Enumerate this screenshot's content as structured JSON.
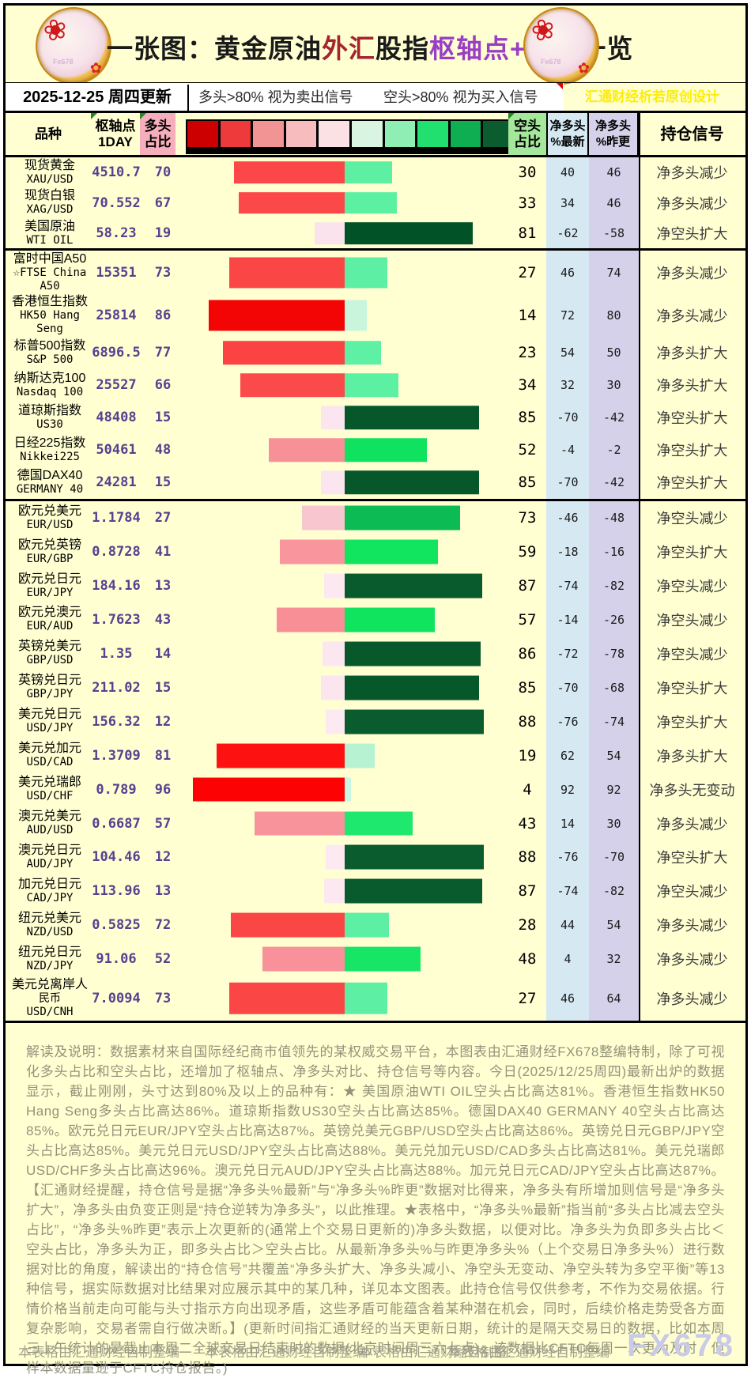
{
  "title_segments": [
    {
      "text": "一张图：黄金原油",
      "color": "#1a1a1a"
    },
    {
      "text": "外汇",
      "color": "#a42430"
    },
    {
      "text": "股指",
      "color": "#1a1a1a"
    },
    {
      "text": "枢轴点+多空",
      "color": "#9a3fc4"
    },
    {
      "text": "一览",
      "color": "#1a1a1a"
    }
  ],
  "logo": {
    "watermark": "Fx678",
    "flower_icon": "❀",
    "small_flower_icon": "✿"
  },
  "update_bar": {
    "date_label": "2025-12-25 周四更新",
    "long_note": "多头>80% 视为卖出信号",
    "short_note": "空头>80% 视为买入信号",
    "design_credit": "汇通财经析若原创设计"
  },
  "table": {
    "headers": {
      "variety": "品种",
      "pivot": [
        "枢轴点",
        "1DAY"
      ],
      "long": [
        "多头",
        "占比"
      ],
      "short": [
        "空头",
        "占比"
      ],
      "net_latest": [
        "净多头",
        "%最新"
      ],
      "net_prev": [
        "净多头",
        "%昨更"
      ],
      "signal": "持仓信号"
    }
  },
  "color_scale": [
    "#cc0000",
    "#ee3a3a",
    "#f29494",
    "#f6bcbe",
    "#fbe0e4",
    "#d9f4e0",
    "#8eeeb4",
    "#22e070",
    "#0fae52",
    "#0b5c2e"
  ],
  "chart_data": {
    "type": "table",
    "columns": [
      "品种",
      "枢轴点1DAY",
      "多头占比",
      "空头占比",
      "净多头%最新",
      "净多头%昨更",
      "持仓信号"
    ],
    "groups": [
      {
        "rows": [
          {
            "name": [
              "现货黄金",
              "XAU/USD"
            ],
            "pivot": "4510.7",
            "long": 70,
            "short": 30,
            "net_latest": 40,
            "net_prev": 46,
            "signal": "净多头减少"
          },
          {
            "name": [
              "现货白银",
              "XAG/USD"
            ],
            "pivot": "70.552",
            "long": 67,
            "short": 33,
            "net_latest": 34,
            "net_prev": 46,
            "signal": "净多头减少"
          },
          {
            "name": [
              "美国原油",
              "WTI OIL"
            ],
            "pivot": "58.23",
            "long": 19,
            "short": 81,
            "net_latest": -62,
            "net_prev": -58,
            "signal": "净空头扩大"
          }
        ]
      },
      {
        "rows": [
          {
            "name": [
              "富时中国A50",
              "☆FTSE China",
              "A50"
            ],
            "pivot": "15351",
            "long": 73,
            "short": 27,
            "net_latest": 46,
            "net_prev": 74,
            "signal": "净多头减少"
          },
          {
            "name": [
              "香港恒生指数",
              "HK50 Hang",
              "Seng"
            ],
            "pivot": "25814",
            "long": 86,
            "short": 14,
            "net_latest": 72,
            "net_prev": 80,
            "signal": "净多头减少"
          },
          {
            "name": [
              "标普500指数",
              "S&P 500"
            ],
            "pivot": "6896.5",
            "long": 77,
            "short": 23,
            "net_latest": 54,
            "net_prev": 50,
            "signal": "净多头扩大"
          },
          {
            "name": [
              "纳斯达克100",
              "Nasdaq 100"
            ],
            "pivot": "25527",
            "long": 66,
            "short": 34,
            "net_latest": 32,
            "net_prev": 30,
            "signal": "净多头扩大"
          },
          {
            "name": [
              "道琼斯指数",
              "US30"
            ],
            "pivot": "48408",
            "long": 15,
            "short": 85,
            "net_latest": -70,
            "net_prev": -42,
            "signal": "净空头扩大"
          },
          {
            "name": [
              "日经225指数",
              "Nikkei225"
            ],
            "pivot": "50461",
            "long": 48,
            "short": 52,
            "net_latest": -4,
            "net_prev": -2,
            "signal": "净空头扩大"
          },
          {
            "name": [
              "德国DAX40",
              "GERMANY 40"
            ],
            "pivot": "24281",
            "long": 15,
            "short": 85,
            "net_latest": -70,
            "net_prev": -42,
            "signal": "净空头扩大"
          }
        ]
      },
      {
        "rows": [
          {
            "name": [
              "欧元兑美元",
              "EUR/USD"
            ],
            "pivot": "1.1784",
            "long": 27,
            "short": 73,
            "net_latest": -46,
            "net_prev": -48,
            "signal": "净空头减少"
          },
          {
            "name": [
              "欧元兑英镑",
              "EUR/GBP"
            ],
            "pivot": "0.8728",
            "long": 41,
            "short": 59,
            "net_latest": -18,
            "net_prev": -16,
            "signal": "净空头扩大"
          },
          {
            "name": [
              "欧元兑日元",
              "EUR/JPY"
            ],
            "pivot": "184.16",
            "long": 13,
            "short": 87,
            "net_latest": -74,
            "net_prev": -82,
            "signal": "净空头减少"
          },
          {
            "name": [
              "欧元兑澳元",
              "EUR/AUD"
            ],
            "pivot": "1.7623",
            "long": 43,
            "short": 57,
            "net_latest": -14,
            "net_prev": -26,
            "signal": "净空头减少"
          },
          {
            "name": [
              "英镑兑美元",
              "GBP/USD"
            ],
            "pivot": "1.35",
            "long": 14,
            "short": 86,
            "net_latest": -72,
            "net_prev": -78,
            "signal": "净空头减少"
          },
          {
            "name": [
              "英镑兑日元",
              "GBP/JPY"
            ],
            "pivot": "211.02",
            "long": 15,
            "short": 85,
            "net_latest": -70,
            "net_prev": -68,
            "signal": "净空头扩大"
          },
          {
            "name": [
              "美元兑日元",
              "USD/JPY"
            ],
            "pivot": "156.32",
            "long": 12,
            "short": 88,
            "net_latest": -76,
            "net_prev": -74,
            "signal": "净空头扩大"
          },
          {
            "name": [
              "美元兑加元",
              "USD/CAD"
            ],
            "pivot": "1.3709",
            "long": 81,
            "short": 19,
            "net_latest": 62,
            "net_prev": 54,
            "signal": "净多头扩大"
          },
          {
            "name": [
              "美元兑瑞郎",
              "USD/CHF"
            ],
            "pivot": "0.789",
            "long": 96,
            "short": 4,
            "net_latest": 92,
            "net_prev": 92,
            "signal": "净多头无变动"
          },
          {
            "name": [
              "澳元兑美元",
              "AUD/USD"
            ],
            "pivot": "0.6687",
            "long": 57,
            "short": 43,
            "net_latest": 14,
            "net_prev": 30,
            "signal": "净多头减少"
          },
          {
            "name": [
              "澳元兑日元",
              "AUD/JPY"
            ],
            "pivot": "104.46",
            "long": 12,
            "short": 88,
            "net_latest": -76,
            "net_prev": -70,
            "signal": "净空头扩大"
          },
          {
            "name": [
              "加元兑日元",
              "CAD/JPY"
            ],
            "pivot": "113.96",
            "long": 13,
            "short": 87,
            "net_latest": -74,
            "net_prev": -82,
            "signal": "净空头减少"
          },
          {
            "name": [
              "纽元兑美元",
              "NZD/USD"
            ],
            "pivot": "0.5825",
            "long": 72,
            "short": 28,
            "net_latest": 44,
            "net_prev": 54,
            "signal": "净多头减少"
          },
          {
            "name": [
              "纽元兑日元",
              "NZD/JPY"
            ],
            "pivot": "91.06",
            "long": 52,
            "short": 48,
            "net_latest": 4,
            "net_prev": 32,
            "signal": "净多头减少"
          },
          {
            "name": [
              "美元兑离岸人",
              "民币",
              "USD/CNH"
            ],
            "pivot": "7.0094",
            "long": 73,
            "short": 27,
            "net_latest": 46,
            "net_prev": 64,
            "signal": "净多头减少"
          }
        ]
      }
    ]
  },
  "disclaimer": "解读及说明：数据素材来自国际经纪商市值领先的某权威交易平台，本图表由汇通财经FX678整编特制，除了可视化多头占比和空头占比，还增加了枢轴点、净多头对比、持仓信号等内容。今日(2025/12/25周四)最新出炉的数据显示，截止刚刚，头寸达到80%及以上的品种有：★ 美国原油WTI OIL空头占比高达81%。香港恒生指数HK50 Hang Seng多头占比高达86%。道琼斯指数US30空头占比高达85%。德国DAX40 GERMANY 40空头占比高达85%。欧元兑日元EUR/JPY空头占比高达87%。英镑兑美元GBP/USD空头占比高达86%。英镑兑日元GBP/JPY空头占比高达85%。美元兑日元USD/JPY空头占比高达88%。美元兑加元USD/CAD多头占比高达81%。美元兑瑞郎USD/CHF多头占比高达96%。澳元兑日元AUD/JPY空头占比高达88%。加元兑日元CAD/JPY空头占比高达87%。【汇通财经提醒，持仓信号是据“净多头%最新”与“净多头%昨更”数据对比得来，净多头有所增加则信号是“净多头扩大”，净多头由负变正则是“持仓逆转为净多头”，以此推理。★表格中，“净多头%最新”指当前“多头占比减去空头占比”，“净多头%昨更”表示上次更新的(通常上个交易日更新的)净多头数据，以便对比。净多头为负即多头占比＜空头占比，净多头为正，即多头占比＞空头占比。从最新净多头%与昨更净多头%（上个交易日净多头%）进行数据对比的角度，解读出的“持仓信号”共覆盖“净多头扩大、净多头减小、净空头无变动、净空头转为多空平衡”等13种信号，据实际数据对比结果对应展示其中的某几种，详见本文图表。此持仓信号仅供参考，不作为交易依据。行情价格当前走向可能与头寸指示方向出现矛盾，这些矛盾可能蕴含着某种潜在机会，同时，后续价格走势受各方面复杂影响，交易者需自行做决断。】(更新时间指汇通财经的当天更新日期，统计的是隔天交易日的数据，比如本周三上午统计的是截止本周二全球交易日结束时的数据(北京时间周三六七点)。该数据比CFTC每周一次更为及时，但样本数据量逊于CFTC持仓报告。)",
  "footer": {
    "credits": [
      "本表格由汇通财经自制整编",
      "本表格由汇通财经自制整编",
      "本表格由汇通财经自制整:",
      "本表格由汇通财经自制整编"
    ],
    "watermark": "FX678"
  }
}
